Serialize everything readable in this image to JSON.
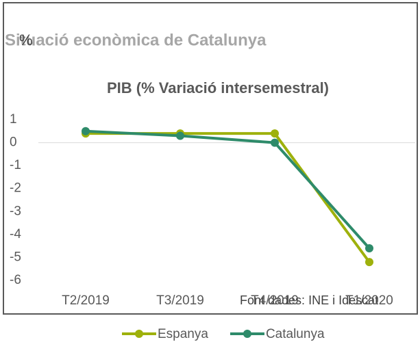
{
  "chart_data": {
    "type": "line",
    "title": "Situació econòmica de Catalunya",
    "y_label": "%",
    "subtitle": "PIB (% Variació intersemestral)",
    "source": "Font dades: INE i Idescat",
    "categories": [
      "T2/2019",
      "T3/2019",
      "T4/2019",
      "T1/2020"
    ],
    "series": [
      {
        "name": "Espanya",
        "color": "#9eb10c",
        "values": [
          0.4,
          0.4,
          0.4,
          -5.2
        ]
      },
      {
        "name": "Catalunya",
        "color": "#2e8b6a",
        "values": [
          0.5,
          0.3,
          0.0,
          -4.6
        ]
      }
    ],
    "ylim": [
      -6,
      1
    ],
    "yticks": [
      1,
      0,
      -1,
      -2,
      -3,
      -4,
      -5,
      -6
    ],
    "legend": "bottom"
  }
}
